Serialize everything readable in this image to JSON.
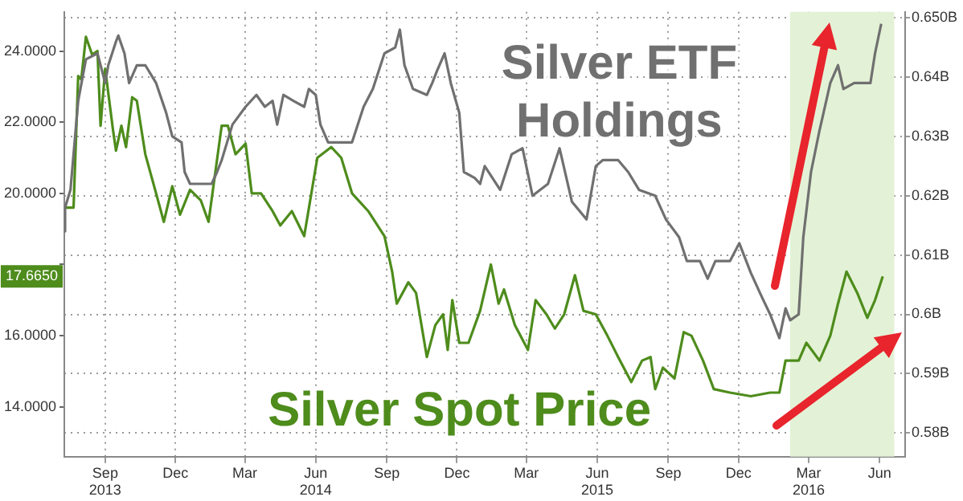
{
  "chart_data": {
    "type": "line",
    "xlim": [
      "2013-07-10",
      "2016-07-04"
    ],
    "xticks": [
      {
        "value": "2013-09",
        "label": "Sep\n2013"
      },
      {
        "value": "2013-12",
        "label": "Dec"
      },
      {
        "value": "2014-03",
        "label": "Mar"
      },
      {
        "value": "2014-06",
        "label": "Jun\n2014"
      },
      {
        "value": "2014-09",
        "label": "Sep"
      },
      {
        "value": "2014-12",
        "label": "Dec"
      },
      {
        "value": "2015-03",
        "label": "Mar"
      },
      {
        "value": "2015-06",
        "label": "Jun\n2015"
      },
      {
        "value": "2015-09",
        "label": "Sep"
      },
      {
        "value": "2015-12",
        "label": "Dec"
      },
      {
        "value": "2016-03",
        "label": "Mar\n2016"
      },
      {
        "value": "2016-06",
        "label": "Jun"
      }
    ],
    "ylim": [
      12.6,
      25.1
    ],
    "yticks": [
      {
        "value": 14,
        "label": "14.0000"
      },
      {
        "value": 16,
        "label": "16.0000"
      },
      {
        "value": 18,
        "label": null
      },
      {
        "value": 20,
        "label": "20.0000"
      },
      {
        "value": 22,
        "label": "22.0000"
      },
      {
        "value": 24,
        "label": "24.0000"
      }
    ],
    "y2lim": [
      0.576,
      0.651
    ],
    "y2ticks": [
      {
        "value": 0.58,
        "label": "0.58B"
      },
      {
        "value": 0.59,
        "label": "0.59B"
      },
      {
        "value": 0.6,
        "label": "0.6B"
      },
      {
        "value": 0.61,
        "label": "0.61B"
      },
      {
        "value": 0.62,
        "label": "0.62B"
      },
      {
        "value": 0.63,
        "label": "0.63B"
      },
      {
        "value": 0.64,
        "label": "0.64B"
      },
      {
        "value": 0.65,
        "label": "0.650B"
      }
    ],
    "grid": true,
    "legend": false,
    "bands": [
      {
        "axis": "x",
        "from": "2016-02-06",
        "to": "2016-06-20",
        "color": "#e3f2d6"
      }
    ],
    "annotations": [
      "17.6650"
    ],
    "series": [
      {
        "name": "Silver ETF Holdings",
        "color": "#707070",
        "axis": "y2",
        "x": [
          "2013-07-10",
          "2013-07-11",
          "2013-07-18",
          "2013-07-28",
          "2013-08-07",
          "2013-08-22",
          "2013-09-01",
          "2013-09-05",
          "2013-09-15",
          "2013-09-18",
          "2013-09-26",
          "2013-10-02",
          "2013-10-12",
          "2013-10-23",
          "2013-11-06",
          "2013-11-19",
          "2013-11-27",
          "2013-12-09",
          "2013-12-13",
          "2013-12-20",
          "2013-12-30",
          "2014-01-17",
          "2014-01-24",
          "2014-01-30",
          "2014-02-13",
          "2014-03-02",
          "2014-03-16",
          "2014-03-27",
          "2014-04-06",
          "2014-04-12",
          "2014-04-20",
          "2014-05-03",
          "2014-05-17",
          "2014-05-23",
          "2014-06-01",
          "2014-06-07",
          "2014-06-17",
          "2014-07-04",
          "2014-07-18",
          "2014-08-02",
          "2014-08-14",
          "2014-08-29",
          "2014-09-12",
          "2014-09-18",
          "2014-09-24",
          "2014-10-05",
          "2014-10-23",
          "2014-10-30",
          "2014-11-05",
          "2014-11-15",
          "2014-11-23",
          "2014-12-04",
          "2014-12-10",
          "2014-12-24",
          "2014-12-31",
          "2015-01-06",
          "2015-01-26",
          "2015-02-10",
          "2015-02-24",
          "2015-03-09",
          "2015-03-29",
          "2015-04-13",
          "2015-04-29",
          "2015-05-18",
          "2015-05-30",
          "2015-06-08",
          "2015-06-28",
          "2015-07-11",
          "2015-07-25",
          "2015-08-15",
          "2015-08-29",
          "2015-09-15",
          "2015-09-25",
          "2015-10-12",
          "2015-10-22",
          "2015-11-01",
          "2015-11-20",
          "2015-12-02",
          "2015-12-17",
          "2015-12-31",
          "2016-01-11",
          "2016-01-23",
          "2016-01-31",
          "2016-02-06",
          "2016-02-17",
          "2016-02-23",
          "2016-03-04",
          "2016-03-15",
          "2016-03-29",
          "2016-04-08",
          "2016-04-15",
          "2016-04-29",
          "2016-05-20",
          "2016-05-26",
          "2016-06-03"
        ],
        "values": [
          0.614,
          0.618,
          0.621,
          0.636,
          0.643,
          0.644,
          0.639,
          0.642,
          0.646,
          0.647,
          0.644,
          0.639,
          0.642,
          0.642,
          0.639,
          0.634,
          0.63,
          0.629,
          0.624,
          0.622,
          0.622,
          0.622,
          0.624,
          0.626,
          0.632,
          0.635,
          0.637,
          0.635,
          0.636,
          0.632,
          0.637,
          0.636,
          0.635,
          0.638,
          0.637,
          0.632,
          0.629,
          0.629,
          0.629,
          0.635,
          0.638,
          0.644,
          0.645,
          0.648,
          0.642,
          0.638,
          0.637,
          0.639,
          0.641,
          0.644,
          0.639,
          0.634,
          0.624,
          0.623,
          0.622,
          0.625,
          0.621,
          0.627,
          0.628,
          0.62,
          0.622,
          0.628,
          0.619,
          0.616,
          0.625,
          0.626,
          0.626,
          0.624,
          0.621,
          0.62,
          0.616,
          0.613,
          0.609,
          0.609,
          0.606,
          0.609,
          0.609,
          0.612,
          0.607,
          0.603,
          0.6,
          0.596,
          0.601,
          0.599,
          0.6,
          0.613,
          0.624,
          0.631,
          0.639,
          0.642,
          0.638,
          0.639,
          0.639,
          0.644,
          0.649
        ]
      },
      {
        "name": "Silver Spot Price",
        "color": "#4e8c1c",
        "x": [
          "2013-07-10",
          "2013-07-22",
          "2013-07-28",
          "2013-08-01",
          "2013-08-07",
          "2013-08-15",
          "2013-08-22",
          "2013-08-26",
          "2013-09-01",
          "2013-09-11",
          "2013-09-15",
          "2013-09-22",
          "2013-09-28",
          "2013-10-06",
          "2013-10-12",
          "2013-10-23",
          "2013-11-06",
          "2013-11-16",
          "2013-11-27",
          "2013-12-07",
          "2013-12-20",
          "2014-01-03",
          "2014-01-13",
          "2014-01-30",
          "2014-02-07",
          "2014-02-17",
          "2014-03-02",
          "2014-03-10",
          "2014-03-22",
          "2014-04-06",
          "2014-04-16",
          "2014-05-01",
          "2014-05-17",
          "2014-06-03",
          "2014-06-21",
          "2014-07-04",
          "2014-07-18",
          "2014-08-08",
          "2014-08-29",
          "2014-09-08",
          "2014-09-14",
          "2014-09-29",
          "2014-10-09",
          "2014-10-23",
          "2014-11-03",
          "2014-11-13",
          "2014-11-19",
          "2014-11-25",
          "2014-12-04",
          "2014-12-16",
          "2014-12-31",
          "2015-01-14",
          "2015-01-24",
          "2015-01-31",
          "2015-02-14",
          "2015-03-03",
          "2015-03-13",
          "2015-03-27",
          "2015-04-07",
          "2015-04-19",
          "2015-05-03",
          "2015-05-14",
          "2015-05-30",
          "2015-06-14",
          "2015-06-28",
          "2015-07-15",
          "2015-07-29",
          "2015-08-09",
          "2015-08-15",
          "2015-08-25",
          "2015-09-09",
          "2015-09-21",
          "2015-10-01",
          "2015-10-16",
          "2015-10-30",
          "2015-11-20",
          "2015-12-17",
          "2016-01-11",
          "2016-01-23",
          "2016-01-31",
          "2016-02-17",
          "2016-02-27",
          "2016-03-15",
          "2016-03-29",
          "2016-04-08",
          "2016-04-19",
          "2016-05-03",
          "2016-05-16",
          "2016-05-26",
          "2016-06-05"
        ],
        "values": [
          19.6,
          19.6,
          23.3,
          23.2,
          24.4,
          23.9,
          24.0,
          21.9,
          23.5,
          21.8,
          21.2,
          21.9,
          21.3,
          22.7,
          22.6,
          21.1,
          20.0,
          19.2,
          20.2,
          19.4,
          20.1,
          19.8,
          19.2,
          21.9,
          21.9,
          21.1,
          21.4,
          20.0,
          20.0,
          19.5,
          19.1,
          19.5,
          18.8,
          21.0,
          21.3,
          21.0,
          20.0,
          19.5,
          18.8,
          17.8,
          16.9,
          17.5,
          17.2,
          15.4,
          16.3,
          16.6,
          15.6,
          17.0,
          15.8,
          15.8,
          16.7,
          18.0,
          16.9,
          17.3,
          16.3,
          15.6,
          17.0,
          16.6,
          16.2,
          16.6,
          17.7,
          16.7,
          16.6,
          16.0,
          15.4,
          14.7,
          15.3,
          15.4,
          14.5,
          15.1,
          14.8,
          16.1,
          16.0,
          15.3,
          14.5,
          14.4,
          14.3,
          14.4,
          14.4,
          15.3,
          15.3,
          15.8,
          15.3,
          16.0,
          16.9,
          17.8,
          17.2,
          16.5,
          17.0,
          17.665
        ]
      }
    ]
  }
}
